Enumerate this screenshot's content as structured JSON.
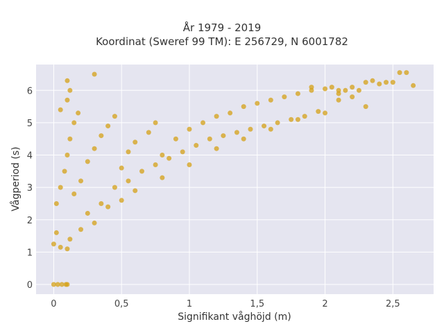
{
  "chart_data": {
    "type": "scatter",
    "title": "År 1979 - 2019",
    "subtitle": "Koordinat (Sweref 99 TM): E 256729, N 6001782",
    "xlabel": "Signifikant våghöjd (m)",
    "ylabel": "Vågperiod (s)",
    "xlim": [
      -0.13,
      2.8
    ],
    "ylim": [
      -0.3,
      6.8
    ],
    "x_ticks": [
      {
        "v": 0,
        "label": "0"
      },
      {
        "v": 0.5,
        "label": "0,5"
      },
      {
        "v": 1,
        "label": "1"
      },
      {
        "v": 1.5,
        "label": "1,5"
      },
      {
        "v": 2,
        "label": "2"
      },
      {
        "v": 2.5,
        "label": "2,5"
      }
    ],
    "y_ticks": [
      {
        "v": 0,
        "label": "0"
      },
      {
        "v": 1,
        "label": "1"
      },
      {
        "v": 2,
        "label": "2"
      },
      {
        "v": 3,
        "label": "3"
      },
      {
        "v": 4,
        "label": "4"
      },
      {
        "v": 5,
        "label": "5"
      },
      {
        "v": 6,
        "label": "6"
      }
    ],
    "grid": true,
    "marker_color": "#D4A017",
    "background_color": "#E5E5F0",
    "series": [
      {
        "points": [
          [
            0.0,
            0.0
          ],
          [
            0.03,
            0.0
          ],
          [
            0.06,
            0.0
          ],
          [
            0.09,
            0.0
          ],
          [
            0.1,
            0.0
          ],
          [
            0.0,
            1.25
          ],
          [
            0.02,
            1.6
          ],
          [
            0.05,
            1.15
          ],
          [
            0.1,
            1.1
          ],
          [
            0.12,
            1.4
          ],
          [
            0.2,
            1.7
          ],
          [
            0.3,
            1.9
          ],
          [
            0.25,
            2.2
          ],
          [
            0.4,
            2.4
          ],
          [
            0.5,
            2.6
          ],
          [
            0.6,
            2.9
          ],
          [
            0.8,
            3.3
          ],
          [
            1.0,
            3.7
          ],
          [
            1.2,
            4.2
          ],
          [
            1.4,
            4.5
          ],
          [
            1.6,
            4.8
          ],
          [
            1.8,
            5.1
          ],
          [
            2.0,
            5.3
          ],
          [
            0.02,
            2.5
          ],
          [
            0.05,
            3.0
          ],
          [
            0.08,
            3.5
          ],
          [
            0.1,
            4.0
          ],
          [
            0.12,
            4.5
          ],
          [
            0.15,
            5.0
          ],
          [
            0.18,
            5.3
          ],
          [
            0.05,
            5.4
          ],
          [
            0.1,
            5.7
          ],
          [
            0.12,
            6.0
          ],
          [
            0.1,
            6.3
          ],
          [
            0.3,
            6.5
          ],
          [
            0.15,
            2.8
          ],
          [
            0.2,
            3.2
          ],
          [
            0.25,
            3.8
          ],
          [
            0.3,
            4.2
          ],
          [
            0.35,
            4.6
          ],
          [
            0.4,
            4.9
          ],
          [
            0.45,
            5.2
          ],
          [
            0.5,
            3.6
          ],
          [
            0.55,
            4.1
          ],
          [
            0.6,
            4.4
          ],
          [
            0.7,
            4.7
          ],
          [
            0.75,
            5.0
          ],
          [
            0.8,
            4.0
          ],
          [
            0.9,
            4.5
          ],
          [
            1.0,
            4.8
          ],
          [
            1.1,
            5.0
          ],
          [
            1.2,
            5.2
          ],
          [
            1.3,
            5.3
          ],
          [
            1.4,
            5.5
          ],
          [
            1.5,
            5.6
          ],
          [
            1.6,
            5.7
          ],
          [
            1.7,
            5.8
          ],
          [
            1.8,
            5.9
          ],
          [
            1.9,
            6.0
          ],
          [
            2.0,
            6.05
          ],
          [
            2.05,
            6.1
          ],
          [
            0.35,
            2.5
          ],
          [
            0.45,
            3.0
          ],
          [
            0.55,
            3.2
          ],
          [
            0.65,
            3.5
          ],
          [
            0.75,
            3.7
          ],
          [
            0.85,
            3.9
          ],
          [
            0.95,
            4.1
          ],
          [
            1.05,
            4.3
          ],
          [
            1.15,
            4.5
          ],
          [
            1.25,
            4.6
          ],
          [
            1.35,
            4.7
          ],
          [
            1.45,
            4.8
          ],
          [
            1.55,
            4.9
          ],
          [
            1.65,
            5.0
          ],
          [
            1.75,
            5.1
          ],
          [
            1.85,
            5.2
          ],
          [
            1.95,
            5.35
          ],
          [
            2.1,
            5.9
          ],
          [
            2.15,
            6.0
          ],
          [
            2.2,
            6.1
          ],
          [
            2.25,
            6.0
          ],
          [
            2.3,
            6.25
          ],
          [
            2.35,
            6.3
          ],
          [
            2.4,
            6.2
          ],
          [
            2.45,
            6.25
          ],
          [
            2.5,
            6.25
          ],
          [
            2.55,
            6.55
          ],
          [
            2.6,
            6.55
          ],
          [
            2.65,
            6.15
          ],
          [
            2.3,
            5.5
          ],
          [
            2.1,
            5.7
          ],
          [
            2.2,
            5.8
          ],
          [
            2.1,
            6.0
          ],
          [
            1.9,
            6.1
          ]
        ]
      }
    ]
  }
}
